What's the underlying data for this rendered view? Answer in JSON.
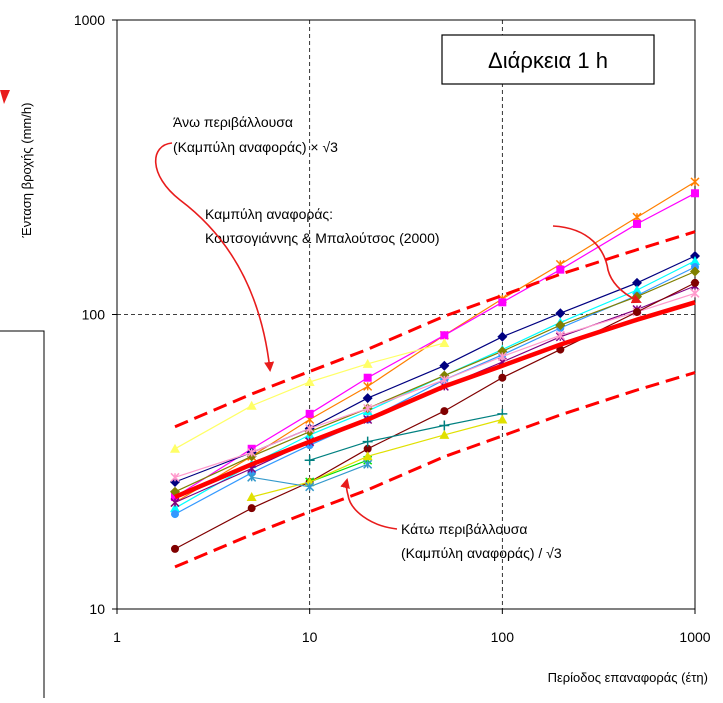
{
  "chart_data": {
    "type": "line",
    "x_scale": "log",
    "y_scale": "log",
    "xlim": [
      1,
      1000
    ],
    "ylim": [
      10,
      1000
    ],
    "x_ticks": [
      "1",
      "10",
      "100",
      "1000"
    ],
    "y_ticks": [
      "10",
      "100",
      "1000"
    ],
    "grid": "dashed at decades",
    "xlabel": "Περίοδος επαναφοράς (έτη)",
    "ylabel": "Ένταση βροχής (mm/h)",
    "duration_label": "Διάρκεια 1 h",
    "annotations": {
      "upper_envelope": [
        "Άνω περιβάλλουσα",
        "(Καμπύλη αναφοράς) × √3"
      ],
      "reference_curve": [
        "Καμπύλη αναφοράς:",
        "Κουτσογιάννης & Μπαλούτσος (2000)"
      ],
      "lower_envelope": [
        "Κάτω περιβάλλουσα",
        "(Καμπύλη αναφοράς) / √3"
      ]
    },
    "reference_curve": {
      "color": "#ff0000",
      "x": [
        2,
        5,
        10,
        20,
        50,
        100,
        200,
        500,
        1000
      ],
      "y": [
        24,
        31,
        37,
        44,
        57,
        67,
        79,
        96,
        110
      ]
    },
    "upper_envelope": {
      "color": "#ff0000",
      "x": [
        2,
        5,
        10,
        20,
        50,
        100,
        200,
        500,
        1000
      ],
      "y": [
        41.6,
        53.7,
        64.1,
        76.2,
        98.7,
        116,
        137,
        166,
        191
      ]
    },
    "lower_envelope": {
      "color": "#ff0000",
      "x": [
        2,
        5,
        10,
        20,
        50,
        100,
        200,
        500,
        1000
      ],
      "y": [
        13.9,
        17.9,
        21.4,
        25.4,
        32.9,
        38.7,
        45.6,
        55.4,
        63.5
      ]
    },
    "stations": [
      {
        "color": "#ff7f00",
        "marker": "x",
        "x": [
          2,
          5,
          10,
          20,
          50,
          100,
          200,
          500,
          1000
        ],
        "y": [
          23,
          33,
          44,
          57,
          85,
          113,
          148,
          214,
          282
        ]
      },
      {
        "color": "#ff00ff",
        "marker": "square",
        "x": [
          2,
          5,
          10,
          20,
          50,
          100,
          200,
          500,
          1000
        ],
        "y": [
          24,
          35,
          46,
          61,
          85,
          110,
          142,
          203,
          258
        ]
      },
      {
        "color": "#000080",
        "marker": "diamond",
        "x": [
          2,
          5,
          10,
          20,
          50,
          100,
          200,
          500,
          1000
        ],
        "y": [
          27,
          34,
          41,
          52,
          67,
          84,
          101,
          128,
          158
        ]
      },
      {
        "color": "#00ffff",
        "marker": "triangle",
        "x": [
          2,
          5,
          10,
          20,
          50,
          100,
          200,
          500,
          1000
        ],
        "y": [
          22,
          31,
          39,
          47,
          62,
          76,
          94,
          121,
          152
        ]
      },
      {
        "color": "#3399ff",
        "marker": "circle",
        "x": [
          2,
          5,
          10,
          20,
          50,
          100,
          200,
          500,
          1000
        ],
        "y": [
          21,
          29,
          36,
          44,
          60,
          73,
          90,
          116,
          145
        ]
      },
      {
        "color": "#808000",
        "marker": "diamond",
        "x": [
          2,
          5,
          10,
          20,
          50,
          100,
          200,
          500,
          1000
        ],
        "y": [
          25,
          33,
          40,
          48,
          62,
          75,
          92,
          115,
          140
        ]
      },
      {
        "color": "#800080",
        "marker": "x",
        "x": [
          2,
          5,
          10,
          20,
          50,
          100,
          200,
          500,
          1000
        ],
        "y": [
          23,
          30,
          37,
          44,
          57,
          69,
          84,
          104,
          125
        ]
      },
      {
        "color": "#ff99cc",
        "marker": "x",
        "x": [
          2,
          5,
          10,
          20,
          50,
          100,
          200,
          500,
          1000
        ],
        "y": [
          28,
          34,
          41,
          48,
          60,
          72,
          85,
          102,
          118
        ]
      },
      {
        "color": "#ffff66",
        "marker": "triangle",
        "x": [
          2,
          5,
          10,
          20,
          50
        ],
        "y": [
          35,
          49,
          59,
          68,
          80
        ]
      },
      {
        "color": "#800000",
        "marker": "circle",
        "x": [
          2,
          5,
          10,
          20,
          50,
          100,
          200,
          500,
          1000
        ],
        "y": [
          16,
          22,
          27,
          35,
          47,
          61,
          76,
          102,
          128
        ]
      },
      {
        "color": "#008080",
        "marker": "plus",
        "x": [
          10,
          20,
          50,
          100
        ],
        "y": [
          32,
          37,
          42,
          46
        ]
      },
      {
        "color": "#00e000",
        "marker": "x",
        "x": [
          10,
          20
        ],
        "y": [
          27,
          32
        ]
      },
      {
        "color": "#e0e000",
        "marker": "triangle",
        "x": [
          5,
          10,
          20,
          50,
          100
        ],
        "y": [
          24,
          27,
          33,
          39,
          44
        ]
      },
      {
        "color": "#3399cc",
        "marker": "x",
        "x": [
          5,
          10,
          20
        ],
        "y": [
          28,
          26,
          31
        ]
      }
    ]
  }
}
